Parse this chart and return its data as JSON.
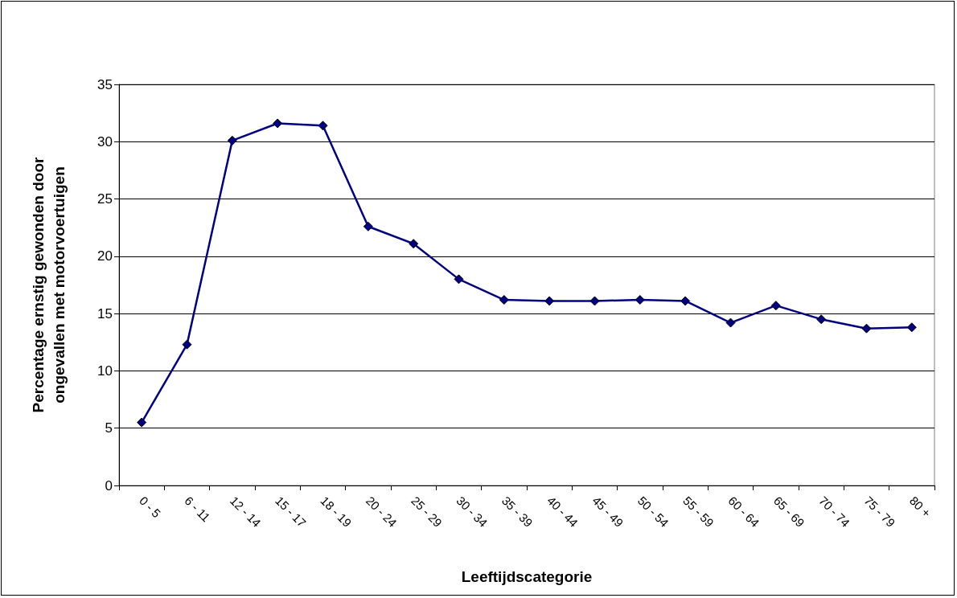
{
  "chart_data": {
    "type": "line",
    "xlabel": "Leeftijdscategorie",
    "ylabel": "Percentage ernstig gewonden door\nongevallen met motorvoertuigen",
    "categories": [
      "0 - 5",
      "6 - 11",
      "12 - 14",
      "15 - 17",
      "18 - 19",
      "20 - 24",
      "25 - 29",
      "30 - 34",
      "35 - 39",
      "40 - 44",
      "45 - 49",
      "50 - 54",
      "55 - 59",
      "60 - 64",
      "65 - 69",
      "70 - 74",
      "75 - 79",
      "80 +"
    ],
    "series": [
      {
        "color": "#000080",
        "values": [
          5.5,
          12.3,
          30.1,
          31.6,
          31.4,
          22.6,
          21.1,
          18.0,
          16.2,
          16.1,
          16.1,
          16.2,
          16.1,
          14.2,
          15.7,
          14.5,
          13.7,
          13.8
        ]
      }
    ],
    "ylim": [
      0,
      35
    ],
    "yticks": [
      0,
      5,
      10,
      15,
      20,
      25,
      30,
      35
    ],
    "grid": "y",
    "marker": "diamond",
    "line_style": "solid"
  }
}
